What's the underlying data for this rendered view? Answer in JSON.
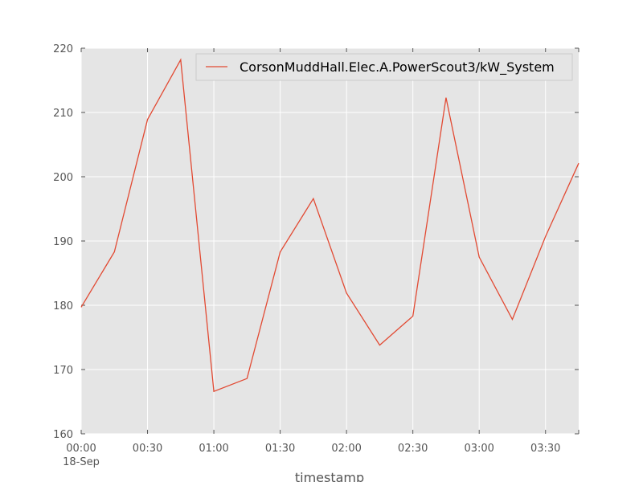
{
  "chart_data": {
    "type": "line",
    "xlabel": "timestamp",
    "ylabel": "",
    "date_label": "18-Sep",
    "x": [
      "00:00",
      "00:15",
      "00:30",
      "00:45",
      "01:00",
      "01:15",
      "01:30",
      "01:45",
      "02:00",
      "02:15",
      "02:30",
      "02:45",
      "03:00",
      "03:15",
      "03:30",
      "03:45"
    ],
    "x_ticks": [
      "00:00",
      "00:30",
      "01:00",
      "01:30",
      "02:00",
      "02:30",
      "03:00",
      "03:30"
    ],
    "xlim": [
      "00:00",
      "03:45"
    ],
    "ylim": [
      160,
      220
    ],
    "y_ticks": [
      160,
      170,
      180,
      190,
      200,
      210,
      220
    ],
    "grid": true,
    "legend_position": "top-right",
    "series": [
      {
        "name": "CorsonMuddHall.Elec.A.PowerScout3/kW_System",
        "color": "#e24a33",
        "values": [
          179.7,
          188.3,
          208.9,
          218.2,
          166.6,
          168.6,
          188.3,
          196.6,
          181.9,
          173.8,
          178.3,
          212.3,
          187.5,
          177.8,
          190.7,
          202.1
        ]
      }
    ]
  },
  "colors": {
    "plot_bg": "#e5e5e5",
    "grid": "#ffffff",
    "line": "#e24a33"
  }
}
